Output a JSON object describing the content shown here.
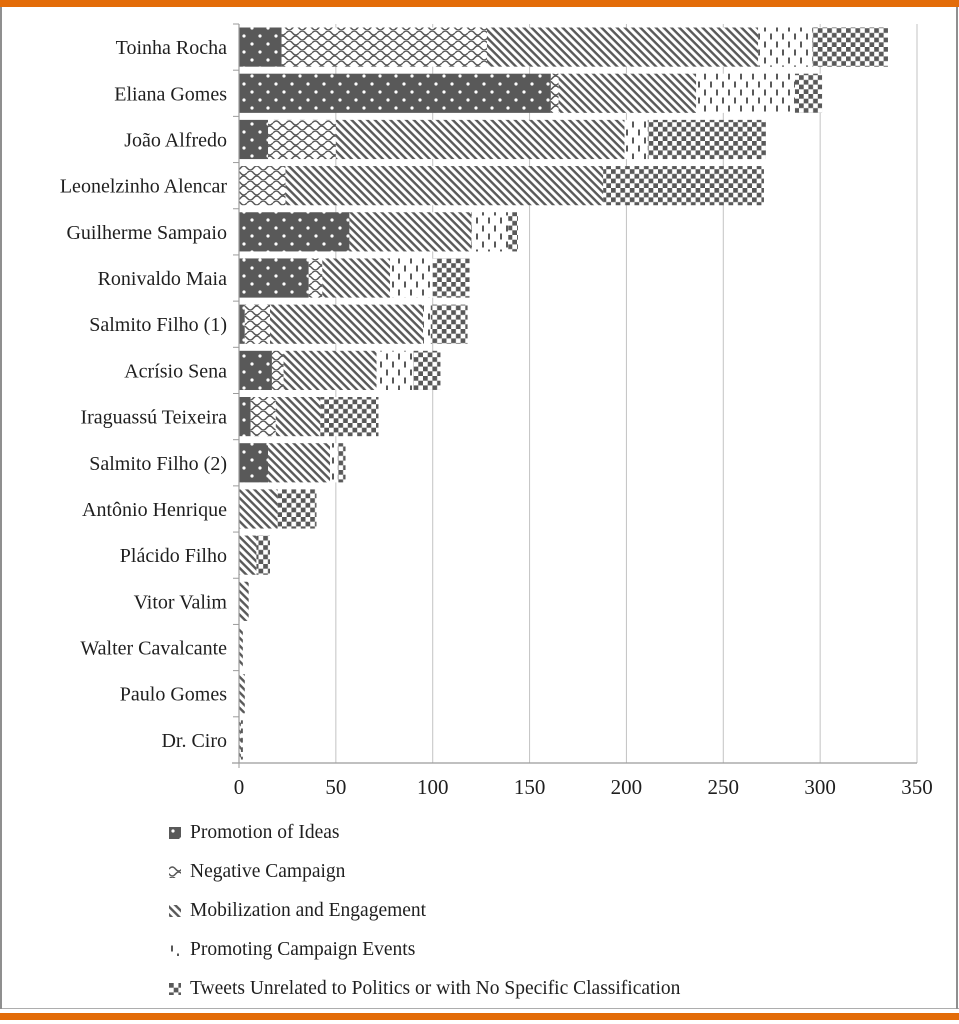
{
  "page": {
    "border_color": "#E36C09",
    "background": "#FFFFFF"
  },
  "chart_data": {
    "type": "bar",
    "orientation": "horizontal-stacked",
    "title": "",
    "xlabel": "",
    "ylabel": "",
    "grid": "vertical-on",
    "legend_position": "bottom-left",
    "xlim": [
      0,
      350
    ],
    "x_ticks": [
      0,
      50,
      100,
      150,
      200,
      250,
      300,
      350
    ],
    "bar_color": "#595959",
    "gridline_color": "#C3C3C3",
    "axis_color": "#9B9B9B",
    "text_color": "#1F1F1F",
    "categories": [
      "Toinha Rocha",
      "Eliana Gomes",
      "João Alfredo",
      "Leonelzinho Alencar",
      "Guilherme Sampaio",
      "Ronivaldo Maia",
      "Salmito Filho (1)",
      "Acrísio Sena",
      "Iraguassú Teixeira",
      "Salmito Filho (2)",
      "Antônio Henrique",
      "Plácido Filho",
      "Vitor Valim",
      "Walter Cavalcante",
      "Paulo Gomes",
      "Dr. Ciro"
    ],
    "series": [
      {
        "name": "Promotion of Ideas",
        "pattern": "dots",
        "values": [
          22,
          161,
          15,
          0,
          57,
          36,
          3,
          17,
          6,
          15,
          0,
          0,
          0,
          0,
          0,
          0
        ]
      },
      {
        "name": "Negative Campaign",
        "pattern": "waves",
        "values": [
          106,
          4,
          35,
          24,
          0,
          7,
          13,
          6,
          13,
          0,
          0,
          0,
          0,
          0,
          0,
          0
        ]
      },
      {
        "name": "Mobilization and Engagement",
        "pattern": "diagonal",
        "values": [
          140,
          71,
          149,
          164,
          63,
          35,
          79,
          48,
          23,
          32,
          20,
          9,
          5,
          2,
          3,
          1
        ]
      },
      {
        "name": "Promoting Campaign Events",
        "pattern": "dashes",
        "values": [
          28,
          51,
          12,
          0,
          19,
          22,
          4,
          19,
          0,
          4,
          0,
          0,
          0,
          0,
          0,
          0
        ]
      },
      {
        "name": "Tweets Unrelated to Politics or with No Specific Classification",
        "pattern": "checker",
        "values": [
          39,
          14,
          61,
          83,
          5,
          19,
          19,
          14,
          30,
          4,
          20,
          7,
          0,
          0,
          0,
          1
        ]
      }
    ],
    "totals": [
      335,
      301,
      272,
      271,
      144,
      119,
      118,
      104,
      72,
      55,
      40,
      16,
      5,
      2,
      3,
      2
    ]
  },
  "legend": {
    "items": [
      {
        "label": "Promotion of Ideas"
      },
      {
        "label": "Negative Campaign"
      },
      {
        "label": "Mobilization and Engagement"
      },
      {
        "label": "Promoting Campaign Events"
      },
      {
        "label": "Tweets Unrelated to Politics or with No Specific Classification"
      }
    ]
  }
}
